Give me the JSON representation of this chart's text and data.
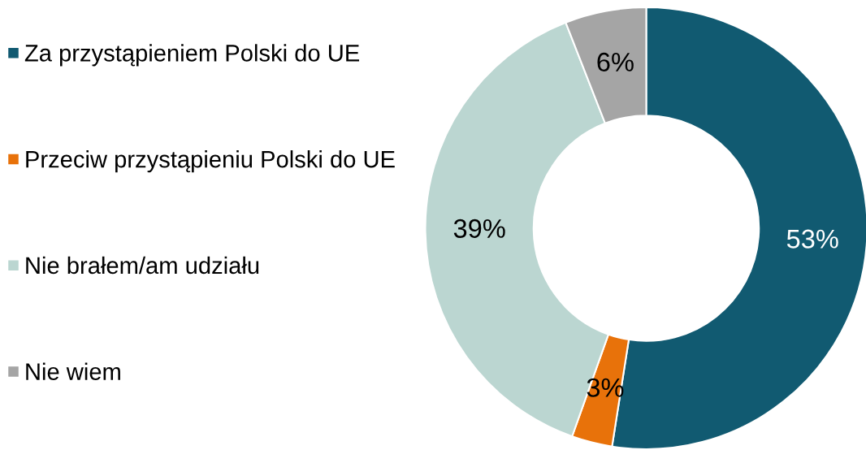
{
  "chart_data": {
    "type": "donut",
    "categories": [
      "Za przystąpieniem Polski do UE",
      "Przeciw przystąpieniu Polski do UE",
      "Nie brałem/am udziału",
      "Nie wiem"
    ],
    "values": [
      53,
      3,
      39,
      6
    ],
    "colors": [
      "#115a71",
      "#e8720a",
      "#bbd6d1",
      "#a5a5a5"
    ],
    "value_labels": [
      "53%",
      "3%",
      "39%",
      "6%"
    ],
    "legend": "left"
  }
}
